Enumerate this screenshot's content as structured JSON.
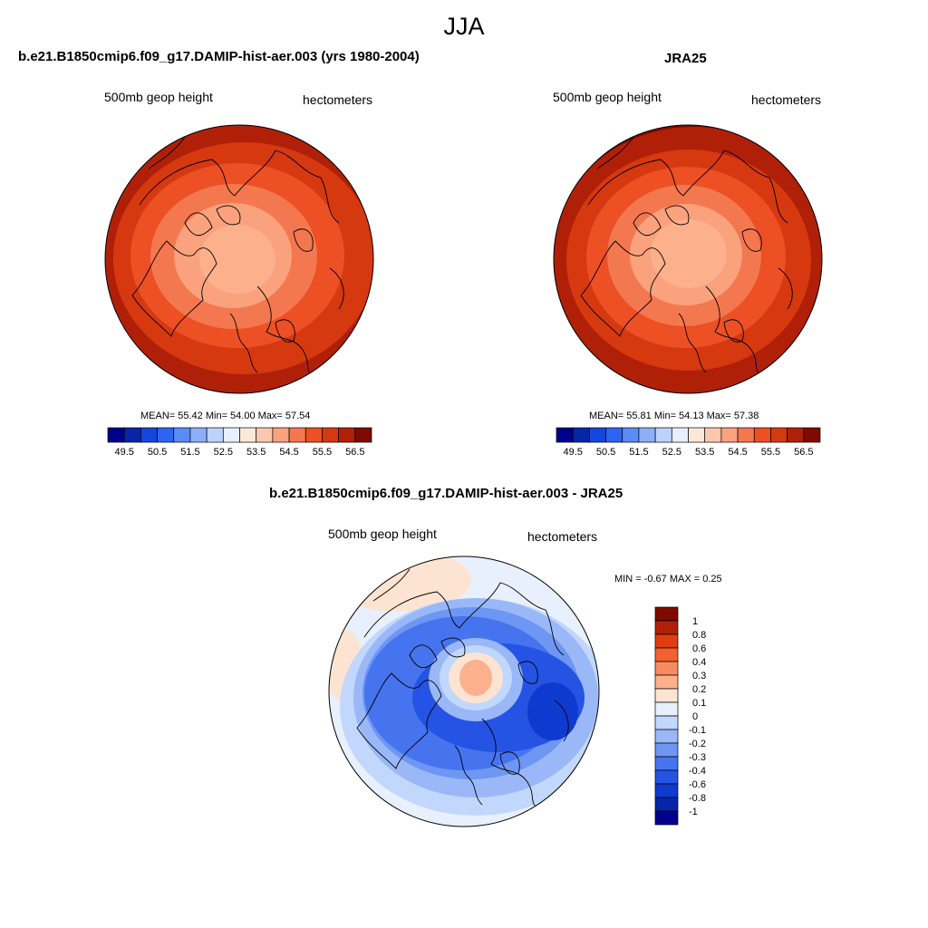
{
  "figure": {
    "season": "JJA"
  },
  "panels": [
    {
      "title": "b.e21.B1850cmip6.f09_g17.DAMIP-hist-aer.003 (yrs 1980-2004)",
      "left_string": "500mb geop height",
      "right_string": "hectometers",
      "stats": "MEAN=  55.42  Min=  54.00  Max=  57.54"
    },
    {
      "title": "JRA25",
      "left_string": "500mb geop height",
      "right_string": "hectometers",
      "stats": "MEAN=  55.81  Min=  54.13  Max=  57.38"
    },
    {
      "title": "b.e21.B1850cmip6.f09_g17.DAMIP-hist-aer.003 - JRA25",
      "left_string": "500mb geop height",
      "right_string": "hectometers",
      "stats": "MIN =  -0.67 MAX =   0.25"
    }
  ],
  "colorbars": {
    "field": {
      "colors": [
        "#00008c",
        "#0726a6",
        "#1446dc",
        "#2d64f0",
        "#5a8cf5",
        "#8caff8",
        "#bcd3fb",
        "#e8f0fe",
        "#fde8d8",
        "#fcc8ad",
        "#f9a27d",
        "#f4784f",
        "#ec5024",
        "#d63810",
        "#b02008",
        "#7e0a02"
      ],
      "labels": [
        "49.5",
        "50.5",
        "51.5",
        "52.5",
        "53.5",
        "54.5",
        "55.5",
        "56.5"
      ]
    },
    "diff": {
      "colors": [
        "#7e0a02",
        "#b02008",
        "#e03c10",
        "#f46030",
        "#f98a60",
        "#fcb08c",
        "#fde4d2",
        "#e8f0fe",
        "#c2d7fc",
        "#9ab8f8",
        "#6e96f3",
        "#4574ee",
        "#2553e3",
        "#0e3ad0",
        "#0526a8",
        "#00008c"
      ],
      "labels": [
        "1",
        "0.8",
        "0.6",
        "0.4",
        "0.3",
        "0.2",
        "0.1",
        "0",
        "-0.1",
        "-0.2",
        "-0.3",
        "-0.4",
        "-0.6",
        "-0.8",
        "-1"
      ]
    }
  }
}
